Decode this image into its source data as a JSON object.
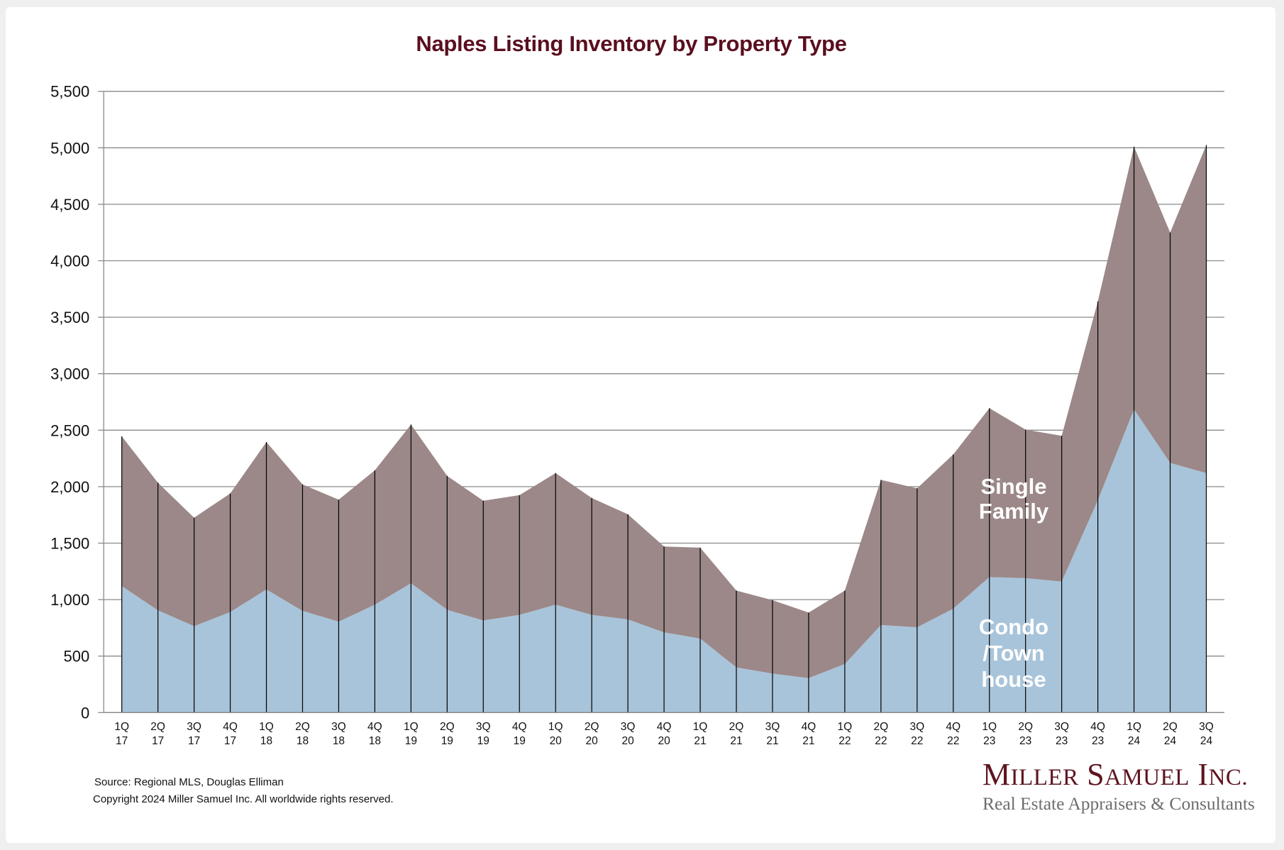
{
  "chart_data": {
    "type": "area",
    "stacked": true,
    "title": "Naples Listing Inventory by Property Type",
    "xlabel": "",
    "ylabel": "",
    "ylim": [
      0,
      5500
    ],
    "yticks": [
      0,
      500,
      1000,
      1500,
      2000,
      2500,
      3000,
      3500,
      4000,
      4500,
      5000,
      5500
    ],
    "ytick_labels": [
      "0",
      "500",
      "1,000",
      "1,500",
      "2,000",
      "2,500",
      "3,000",
      "3,500",
      "4,000",
      "4,500",
      "5,000",
      "5,500"
    ],
    "grid": true,
    "legend": "inline labels on areas",
    "categories": [
      {
        "q": "1Q",
        "y": "17"
      },
      {
        "q": "2Q",
        "y": "17"
      },
      {
        "q": "3Q",
        "y": "17"
      },
      {
        "q": "4Q",
        "y": "17"
      },
      {
        "q": "1Q",
        "y": "18"
      },
      {
        "q": "2Q",
        "y": "18"
      },
      {
        "q": "3Q",
        "y": "18"
      },
      {
        "q": "4Q",
        "y": "18"
      },
      {
        "q": "1Q",
        "y": "19"
      },
      {
        "q": "2Q",
        "y": "19"
      },
      {
        "q": "3Q",
        "y": "19"
      },
      {
        "q": "4Q",
        "y": "19"
      },
      {
        "q": "1Q",
        "y": "20"
      },
      {
        "q": "2Q",
        "y": "20"
      },
      {
        "q": "3Q",
        "y": "20"
      },
      {
        "q": "4Q",
        "y": "20"
      },
      {
        "q": "1Q",
        "y": "21"
      },
      {
        "q": "2Q",
        "y": "21"
      },
      {
        "q": "3Q",
        "y": "21"
      },
      {
        "q": "4Q",
        "y": "21"
      },
      {
        "q": "1Q",
        "y": "22"
      },
      {
        "q": "2Q",
        "y": "22"
      },
      {
        "q": "3Q",
        "y": "22"
      },
      {
        "q": "4Q",
        "y": "22"
      },
      {
        "q": "1Q",
        "y": "23"
      },
      {
        "q": "2Q",
        "y": "23"
      },
      {
        "q": "3Q",
        "y": "23"
      },
      {
        "q": "4Q",
        "y": "23"
      },
      {
        "q": "1Q",
        "y": "24"
      },
      {
        "q": "2Q",
        "y": "24"
      },
      {
        "q": "3Q",
        "y": "24"
      }
    ],
    "series": [
      {
        "name": "Condo/Townhouse",
        "label_lines": [
          "Condo",
          "/Town",
          "house"
        ],
        "color": "#a8c4da",
        "values": [
          1120,
          905,
          765,
          890,
          1090,
          900,
          805,
          955,
          1145,
          910,
          815,
          865,
          955,
          865,
          825,
          710,
          655,
          400,
          345,
          305,
          430,
          775,
          755,
          920,
          1200,
          1190,
          1160,
          1880,
          2685,
          2210,
          2120
        ]
      },
      {
        "name": "Single Family",
        "label_lines": [
          "Single",
          "Family"
        ],
        "color": "#9c8888",
        "values": [
          1325,
          1130,
          960,
          1050,
          1305,
          1120,
          1080,
          1190,
          1405,
          1185,
          1060,
          1060,
          1165,
          1035,
          930,
          760,
          805,
          680,
          650,
          580,
          650,
          1285,
          1230,
          1365,
          1495,
          1315,
          1290,
          1760,
          2325,
          2040,
          2905
        ]
      }
    ],
    "totals": [
      2445,
      2035,
      1725,
      1940,
      2395,
      2020,
      1885,
      2145,
      2550,
      2095,
      1875,
      1925,
      2120,
      1900,
      1755,
      1470,
      1460,
      1080,
      995,
      885,
      1080,
      2060,
      1985,
      2285,
      2695,
      2505,
      2450,
      3640,
      5010,
      4250,
      5025
    ]
  },
  "footer": {
    "source": "Source: Regional MLS, Douglas Elliman",
    "copyright": "Copyright 2024 Miller Samuel Inc.  All worldwide rights reserved."
  },
  "logo": {
    "name": "Miller Samuel Inc.",
    "tagline": "Real Estate Appraisers & Consultants"
  },
  "colors": {
    "title": "#5a0f1e",
    "gridline": "#8a8a8a",
    "divider": "#000000"
  }
}
